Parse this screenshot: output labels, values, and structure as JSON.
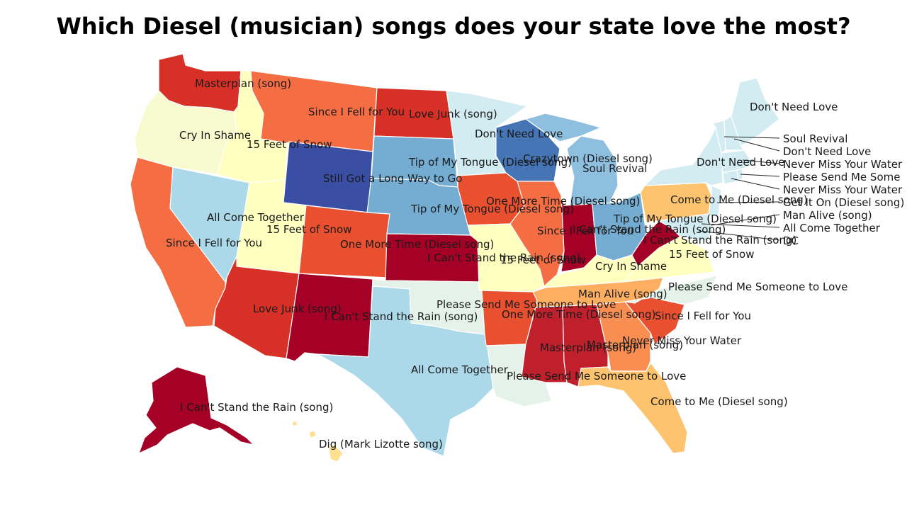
{
  "title": "Which Diesel (musician) songs does your state love the most?",
  "colors": {
    "dark_red": "#a50026",
    "red": "#d73027",
    "red_orange": "#e8502f",
    "orange": "#f46d43",
    "light_orange": "#fdae61",
    "pale_orange": "#fee090",
    "pale_yellow": "#ffffbf",
    "cream": "#f7fbcf",
    "mint": "#e0f3f8",
    "light_blue": "#abd9e9",
    "sky": "#74add1",
    "blue": "#4575b4",
    "dark_blue": "#3a4fa3",
    "pale_cyan": "#d3ecf2"
  },
  "states": {
    "WA": {
      "song": "Masterplan (song)",
      "color": "#d73027"
    },
    "OR": {
      "song": "Cry In Shame",
      "color": "#f7fbcf"
    },
    "CA": {
      "song": "Since I Fell for You",
      "color": "#f46d43"
    },
    "NV": {
      "song": "",
      "color": "#abd9e9"
    },
    "ID": {
      "song": "15 Feet of Snow",
      "color": "#ffffbf"
    },
    "MT": {
      "song": "Since I Fell for You",
      "color": "#f46d43"
    },
    "WY": {
      "song": "Still Got a Long Way to Go",
      "color": "#3a4fa3"
    },
    "UT": {
      "song": "All Come Together",
      "color": "#ffffbf"
    },
    "UT2": {
      "song": "15 Feet of Snow",
      "color": "#ffffbf"
    },
    "CO": {
      "song": "One More Time (Diesel song)",
      "color": "#e8502f"
    },
    "AZ": {
      "song": "Love Junk (song)",
      "color": "#d73027"
    },
    "NM": {
      "song": "I Can't Stand the Rain (song)",
      "color": "#a50026"
    },
    "ND": {
      "song": "Love Junk (song)",
      "color": "#d73027"
    },
    "SD": {
      "song": "Tip of My Tongue (Diesel song)",
      "color": "#74add1"
    },
    "NE": {
      "song": "Tip of My Tongue (Diesel song)",
      "color": "#74add1"
    },
    "KS": {
      "song": "I Can't Stand the Rain (song)",
      "color": "#a50026"
    },
    "OK": {
      "song": "Please Send Me Someone to Love",
      "color": "#e4f2ea"
    },
    "TX": {
      "song": "All Come Together",
      "color": "#abd9e9"
    },
    "MN": {
      "song": "Don't Need Love",
      "color": "#d3ecf2"
    },
    "IA": {
      "song": "One More Time (Diesel song)",
      "color": "#e8502f"
    },
    "MO": {
      "song": "15 Feet of Snow",
      "color": "#ffffbf"
    },
    "AR": {
      "song": "One More Time (Diesel song)",
      "color": "#e8502f"
    },
    "LA": {
      "song": "Please Send Me Someone to Love",
      "color": "#e4f2ea"
    },
    "WI": {
      "song": "Crazytown (Diesel song)",
      "color": "#4575b4"
    },
    "IL": {
      "song": "Since I Fell for You",
      "color": "#f46d43"
    },
    "MI": {
      "song": "Soul Revival",
      "color": "#8fbfdf"
    },
    "IN": {
      "song": "I Can't Stand the Rain (song)",
      "color": "#a50026"
    },
    "OH": {
      "song": "Tip of My Tongue (Diesel song)",
      "color": "#74add1"
    },
    "KY": {
      "song": "Cry In Shame",
      "color": "#ffffbf"
    },
    "TN": {
      "song": "Man Alive (song)",
      "color": "#fdae61"
    },
    "MS": {
      "song": "Masterplan (song)",
      "color": "#c0202c"
    },
    "AL": {
      "song": "Masterplan (song)",
      "color": "#c0202c"
    },
    "GA": {
      "song": "Never Miss Your Water",
      "color": "#f98e52"
    },
    "FL": {
      "song": "Come to Me (Diesel song)",
      "color": "#fdc36e"
    },
    "SC": {
      "song": "Since I Fell for You",
      "color": "#e8502f"
    },
    "NC": {
      "song": "Please Send Me Someone to Love",
      "color": "#e4f2ea"
    },
    "VA": {
      "song": "15 Feet of Snow",
      "color": "#ffffbf"
    },
    "WV": {
      "song": "I Can't Stand the Rain (song)",
      "color": "#a50026"
    },
    "PA": {
      "song": "Come to Me (Diesel song)",
      "color": "#fdc36e"
    },
    "NY": {
      "song": "Don't Need Love",
      "color": "#d3ecf2"
    },
    "ME": {
      "song": "Don't Need Love",
      "color": "#d3ecf2"
    },
    "AK": {
      "song": "I Can't Stand the Rain (song)",
      "color": "#a50026"
    },
    "HI": {
      "song": "Dig (Mark Lizotte song)",
      "color": "#fee090"
    }
  },
  "northeast_callouts": [
    {
      "song": "Soul Revival",
      "state": "VT"
    },
    {
      "song": "Don't Need Love",
      "state": "NH"
    },
    {
      "song": "Never Miss Your Water",
      "state": "MA"
    },
    {
      "song": "Please Send Me Someone to Love",
      "state": "RI"
    },
    {
      "song": "Never Miss Your Water",
      "state": "CT"
    },
    {
      "song": "Get It On (Diesel song)",
      "state": "NJ"
    },
    {
      "song": "Man Alive (song)",
      "state": "DE"
    },
    {
      "song": "All Come Together",
      "state": "MD"
    },
    {
      "song": "DC",
      "state": "DC"
    }
  ]
}
